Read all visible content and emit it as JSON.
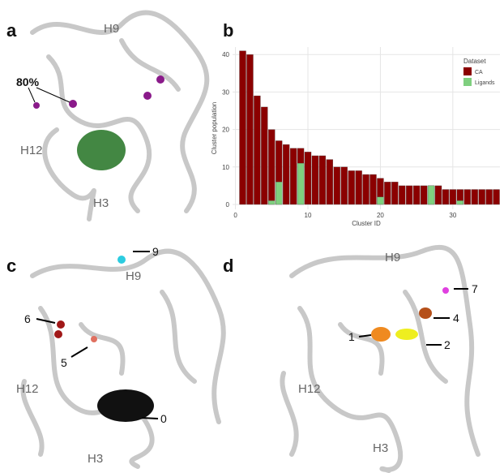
{
  "panels": [
    {
      "label": "a",
      "annotations": [
        "H9",
        "80%",
        "H12",
        "H3"
      ]
    },
    {
      "label": "b"
    },
    {
      "label": "c",
      "annotations": [
        "9",
        "H9",
        "6",
        "5",
        "H12",
        "0",
        "H3"
      ]
    },
    {
      "label": "d",
      "annotations": [
        "H9",
        "7",
        "4",
        "1",
        "2",
        "H12",
        "H3"
      ]
    }
  ],
  "chart_data": {
    "type": "bar",
    "overlay": true,
    "x": [
      1,
      2,
      3,
      4,
      5,
      6,
      7,
      8,
      9,
      10,
      11,
      12,
      13,
      14,
      15,
      16,
      17,
      18,
      19,
      20,
      21,
      22,
      23,
      24,
      25,
      26,
      27,
      28,
      29,
      30,
      31,
      32,
      33,
      34,
      35,
      36
    ],
    "series": [
      {
        "name": "CA",
        "color": "#8b0000",
        "values": [
          41,
          40,
          29,
          26,
          20,
          17,
          16,
          15,
          15,
          14,
          13,
          13,
          12,
          10,
          10,
          9,
          9,
          8,
          8,
          7,
          6,
          6,
          5,
          5,
          5,
          5,
          5,
          5,
          4,
          4,
          4,
          4,
          4,
          4,
          4,
          4
        ]
      },
      {
        "name": "Ligands",
        "color": "#7fcf7f",
        "values": [
          null,
          null,
          null,
          null,
          1,
          6,
          null,
          null,
          11,
          null,
          null,
          null,
          null,
          null,
          null,
          null,
          null,
          null,
          null,
          2,
          null,
          null,
          null,
          null,
          null,
          null,
          5,
          null,
          null,
          null,
          1,
          null,
          null,
          null,
          null,
          null
        ]
      }
    ],
    "xlabel": "Cluster ID",
    "ylabel": "Cluster population",
    "legend_title": "Dataset",
    "xlim": [
      -0.4,
      36.5
    ],
    "ylim": [
      -1.3,
      42
    ],
    "xticks": [
      0,
      10,
      20,
      30
    ],
    "yticks": [
      0,
      10,
      20,
      30,
      40
    ],
    "grid": true,
    "legend": "upper right"
  }
}
